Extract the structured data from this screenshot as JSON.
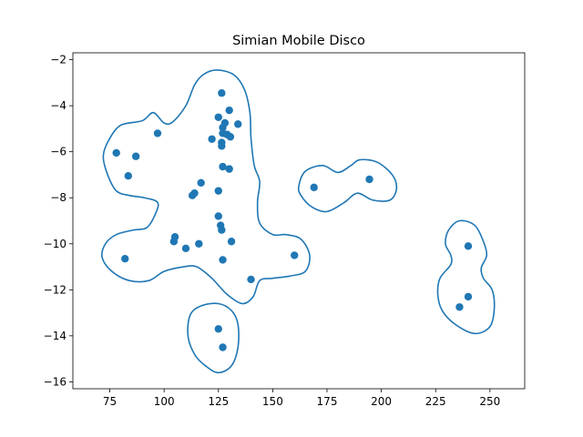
{
  "chart_data": {
    "type": "scatter",
    "title": "Simian Mobile Disco",
    "xlabel": "",
    "ylabel": "",
    "xlim": [
      58,
      266
    ],
    "ylim": [
      -16.3,
      -1.7
    ],
    "xticks": [
      75,
      100,
      125,
      150,
      175,
      200,
      225,
      250
    ],
    "yticks": [
      -2,
      -4,
      -6,
      -8,
      -10,
      -12,
      -14,
      -16
    ],
    "grid": false,
    "point_color": "#1f77b4",
    "contour_color": "#1f77b4",
    "points": [
      {
        "x": 126.5,
        "y": -3.45
      },
      {
        "x": 130,
        "y": -4.2
      },
      {
        "x": 125,
        "y": -4.5
      },
      {
        "x": 128,
        "y": -4.75
      },
      {
        "x": 134,
        "y": -4.8
      },
      {
        "x": 127,
        "y": -4.95
      },
      {
        "x": 127,
        "y": -5.2
      },
      {
        "x": 129,
        "y": -5.25
      },
      {
        "x": 130.5,
        "y": -5.35
      },
      {
        "x": 97,
        "y": -5.2
      },
      {
        "x": 122,
        "y": -5.45
      },
      {
        "x": 126.5,
        "y": -5.6
      },
      {
        "x": 126.5,
        "y": -5.75
      },
      {
        "x": 78,
        "y": -6.05
      },
      {
        "x": 87,
        "y": -6.2
      },
      {
        "x": 127,
        "y": -6.65
      },
      {
        "x": 130,
        "y": -6.75
      },
      {
        "x": 83.5,
        "y": -7.05
      },
      {
        "x": 117,
        "y": -7.35
      },
      {
        "x": 114,
        "y": -7.8
      },
      {
        "x": 113,
        "y": -7.9
      },
      {
        "x": 125,
        "y": -7.7
      },
      {
        "x": 125,
        "y": -8.8
      },
      {
        "x": 126,
        "y": -9.2
      },
      {
        "x": 126.5,
        "y": -9.4
      },
      {
        "x": 105,
        "y": -9.7
      },
      {
        "x": 104.5,
        "y": -9.9
      },
      {
        "x": 131,
        "y": -9.9
      },
      {
        "x": 116,
        "y": -10.0
      },
      {
        "x": 110,
        "y": -10.2
      },
      {
        "x": 160,
        "y": -10.5
      },
      {
        "x": 82,
        "y": -10.65
      },
      {
        "x": 127,
        "y": -10.7
      },
      {
        "x": 140,
        "y": -11.55
      },
      {
        "x": 125,
        "y": -13.7
      },
      {
        "x": 127,
        "y": -14.5
      },
      {
        "x": 169,
        "y": -7.55
      },
      {
        "x": 194.5,
        "y": -7.2
      },
      {
        "x": 240,
        "y": -10.1
      },
      {
        "x": 240,
        "y": -12.3
      },
      {
        "x": 236,
        "y": -12.75
      }
    ],
    "contours": [
      [
        [
          74.5,
          -5.5
        ],
        [
          80,
          -4.85
        ],
        [
          90,
          -4.65
        ],
        [
          95,
          -4.3
        ],
        [
          100,
          -4.75
        ],
        [
          104,
          -4.7
        ],
        [
          110,
          -4.0
        ],
        [
          114,
          -3.1
        ],
        [
          118,
          -2.65
        ],
        [
          124,
          -2.45
        ],
        [
          132,
          -2.65
        ],
        [
          137,
          -3.3
        ],
        [
          139.5,
          -4.3
        ],
        [
          140,
          -5.4
        ],
        [
          141.5,
          -6.6
        ],
        [
          144,
          -7.3
        ],
        [
          143,
          -8.2
        ],
        [
          144,
          -9.1
        ],
        [
          150,
          -9.6
        ],
        [
          156,
          -9.6
        ],
        [
          163,
          -9.8
        ],
        [
          167,
          -10.5
        ],
        [
          165,
          -11.2
        ],
        [
          158,
          -11.4
        ],
        [
          150,
          -11.5
        ],
        [
          144,
          -11.6
        ],
        [
          141,
          -12.3
        ],
        [
          136,
          -12.6
        ],
        [
          129,
          -12.2
        ],
        [
          122,
          -11.5
        ],
        [
          115,
          -11.0
        ],
        [
          109,
          -11.0
        ],
        [
          100,
          -11.2
        ],
        [
          93,
          -11.6
        ],
        [
          84,
          -11.6
        ],
        [
          76,
          -11.2
        ],
        [
          71.5,
          -10.6
        ],
        [
          73,
          -10.0
        ],
        [
          78,
          -9.6
        ],
        [
          86,
          -9.4
        ],
        [
          92,
          -9.3
        ],
        [
          96,
          -8.7
        ],
        [
          97,
          -8.2
        ],
        [
          91,
          -8.0
        ],
        [
          84,
          -7.9
        ],
        [
          78,
          -7.7
        ],
        [
          74,
          -7.0
        ],
        [
          72,
          -6.2
        ]
      ],
      [
        [
          162,
          -7.5
        ],
        [
          165,
          -6.85
        ],
        [
          173,
          -6.6
        ],
        [
          180,
          -6.9
        ],
        [
          186,
          -6.6
        ],
        [
          190,
          -6.35
        ],
        [
          198,
          -6.45
        ],
        [
          205,
          -7.0
        ],
        [
          207,
          -7.6
        ],
        [
          204,
          -8.1
        ],
        [
          196,
          -8.1
        ],
        [
          189,
          -7.8
        ],
        [
          183,
          -8.2
        ],
        [
          175,
          -8.6
        ],
        [
          168,
          -8.4
        ],
        [
          163,
          -7.9
        ]
      ],
      [
        [
          229.5,
          -10.0
        ],
        [
          231,
          -9.4
        ],
        [
          236,
          -9.0
        ],
        [
          243,
          -9.2
        ],
        [
          247,
          -9.9
        ],
        [
          248.5,
          -10.5
        ],
        [
          246,
          -11.05
        ],
        [
          247,
          -11.5
        ],
        [
          251,
          -12.0
        ],
        [
          252,
          -12.8
        ],
        [
          250,
          -13.6
        ],
        [
          243,
          -13.9
        ],
        [
          234,
          -13.5
        ],
        [
          228,
          -12.9
        ],
        [
          226,
          -12.2
        ],
        [
          227,
          -11.5
        ],
        [
          232,
          -10.9
        ],
        [
          232,
          -10.5
        ]
      ],
      [
        [
          112,
          -13.1
        ],
        [
          117,
          -12.7
        ],
        [
          125,
          -12.6
        ],
        [
          131,
          -12.9
        ],
        [
          134,
          -13.5
        ],
        [
          134,
          -14.5
        ],
        [
          131,
          -15.3
        ],
        [
          125,
          -15.6
        ],
        [
          119,
          -15.3
        ],
        [
          114,
          -14.8
        ],
        [
          111,
          -14.0
        ]
      ]
    ]
  }
}
